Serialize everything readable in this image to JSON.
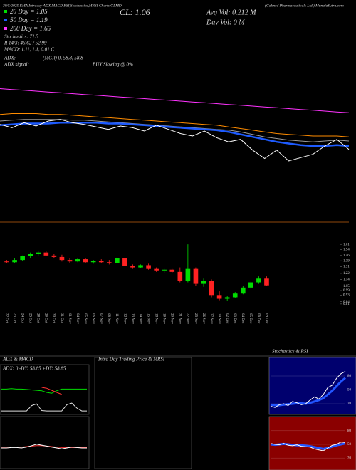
{
  "header": {
    "title": "30/5/2025 EMA Intraday ADX,MACD,RSI,Stochastics,MRSI Charts GLMD",
    "company": "(Galmed Pharmaceuticals Ltd.) MunafaSutra.com",
    "ema20": "20 Day = 1.05",
    "ema50": "50 Day = 1.19",
    "ema200": "200 Day = 1.65",
    "stoch": "Stochastics: 71.5",
    "rsi": "R 14/3: 46.62 / 52.99",
    "macd": "MACD: 1.11, 1.1, 0.01 C",
    "adx": "ADX:",
    "adx_value": "(MGR) 0, 58.8, 58.8",
    "adx_signal": "ADX signal:",
    "signal": "BUY Slowing @ 0%",
    "close": "CL: 1.06",
    "avg_vol": "Avg Vol: 0.212 M",
    "day_vol": "Day Vol: 0 M"
  },
  "chart_data": [
    {
      "type": "line",
      "ylim": [
        0.8,
        2.0
      ],
      "series": [
        {
          "color": "#ff33ff",
          "values": [
            1.79,
            1.78,
            1.77,
            1.76,
            1.75,
            1.74,
            1.73,
            1.72,
            1.71,
            1.7,
            1.69,
            1.68,
            1.67,
            1.66,
            1.65,
            1.64,
            1.63,
            1.62,
            1.61,
            1.6,
            1.59,
            1.58,
            1.57,
            1.56,
            1.55,
            1.54,
            1.53,
            1.52,
            1.51,
            1.5
          ]
        },
        {
          "color": "#ff8c00",
          "values": [
            1.48,
            1.49,
            1.49,
            1.49,
            1.48,
            1.48,
            1.47,
            1.46,
            1.45,
            1.44,
            1.43,
            1.42,
            1.41,
            1.4,
            1.39,
            1.38,
            1.37,
            1.36,
            1.35,
            1.33,
            1.31,
            1.29,
            1.27,
            1.25,
            1.24,
            1.23,
            1.22,
            1.22,
            1.22,
            1.21
          ]
        },
        {
          "color": "#999999",
          "values": [
            1.4,
            1.41,
            1.42,
            1.42,
            1.42,
            1.42,
            1.41,
            1.41,
            1.4,
            1.39,
            1.38,
            1.37,
            1.36,
            1.35,
            1.34,
            1.33,
            1.32,
            1.31,
            1.3,
            1.29,
            1.27,
            1.24,
            1.21,
            1.19,
            1.17,
            1.16,
            1.15,
            1.16,
            1.17,
            1.16
          ]
        },
        {
          "color": "#1e5bff",
          "values": [
            1.35,
            1.36,
            1.37,
            1.37,
            1.37,
            1.38,
            1.38,
            1.38,
            1.38,
            1.37,
            1.37,
            1.36,
            1.35,
            1.34,
            1.33,
            1.32,
            1.31,
            1.3,
            1.29,
            1.27,
            1.24,
            1.21,
            1.18,
            1.15,
            1.13,
            1.11,
            1.1,
            1.1,
            1.11,
            1.1
          ]
        },
        {
          "color": "#ffffff",
          "values": [
            1.36,
            1.32,
            1.38,
            1.34,
            1.4,
            1.42,
            1.38,
            1.36,
            1.33,
            1.3,
            1.34,
            1.32,
            1.28,
            1.35,
            1.3,
            1.25,
            1.22,
            1.28,
            1.2,
            1.15,
            1.18,
            1.05,
            0.95,
            1.05,
            0.92,
            0.96,
            1.0,
            1.1,
            1.18,
            1.06
          ]
        }
      ]
    },
    {
      "type": "candlestick",
      "categories": [
        "22 Oct",
        "23 Oct",
        "24 Oct",
        "25 Oct",
        "28 Oct",
        "29 Oct",
        "30 Oct",
        "31 Oct",
        "01 Nov",
        "04 Nov",
        "05 Nov",
        "06 Nov",
        "07 Nov",
        "08 Nov",
        "11 Nov",
        "12 Nov",
        "13 Nov",
        "14 Nov",
        "15 Nov",
        "18 Nov",
        "19 Nov",
        "20 Nov",
        "21 Nov",
        "22 Nov",
        "25 Nov",
        "26 Nov",
        "27 Nov",
        "29 Nov",
        "02 Dec",
        "03 Dec",
        "04 Dec",
        "05 Dec",
        "06 Dec",
        "09 Dec"
      ],
      "open": [
        1.38,
        1.37,
        1.4,
        1.45,
        1.48,
        1.5,
        1.46,
        1.44,
        1.4,
        1.38,
        1.41,
        1.37,
        1.39,
        1.37,
        1.36,
        1.42,
        1.32,
        1.3,
        1.33,
        1.28,
        1.26,
        1.27,
        1.24,
        1.12,
        1.28,
        1.08,
        1.12,
        0.93,
        0.88,
        0.9,
        0.95,
        1.03,
        1.1,
        1.15
      ],
      "high": [
        1.4,
        1.42,
        1.46,
        1.5,
        1.52,
        1.52,
        1.48,
        1.47,
        1.42,
        1.43,
        1.42,
        1.4,
        1.41,
        1.4,
        1.44,
        1.45,
        1.34,
        1.34,
        1.35,
        1.3,
        1.28,
        1.28,
        1.3,
        1.61,
        1.3,
        1.15,
        1.14,
        0.98,
        0.92,
        0.97,
        1.05,
        1.12,
        1.18,
        1.18
      ],
      "low": [
        1.36,
        1.36,
        1.39,
        1.42,
        1.46,
        1.45,
        1.42,
        1.38,
        1.36,
        1.37,
        1.36,
        1.35,
        1.36,
        1.34,
        1.35,
        1.3,
        1.28,
        1.29,
        1.27,
        1.24,
        1.23,
        1.22,
        1.1,
        1.1,
        1.05,
        1.04,
        0.9,
        0.86,
        0.85,
        0.89,
        0.94,
        1.01,
        1.08,
        1.05
      ],
      "close": [
        1.37,
        1.4,
        1.45,
        1.48,
        1.5,
        1.46,
        1.44,
        1.4,
        1.38,
        1.41,
        1.37,
        1.39,
        1.37,
        1.36,
        1.42,
        1.32,
        1.3,
        1.33,
        1.28,
        1.26,
        1.27,
        1.24,
        1.12,
        1.28,
        1.08,
        1.12,
        0.93,
        0.88,
        0.9,
        0.95,
        1.03,
        1.1,
        1.15,
        1.06
      ],
      "ylim": [
        0.78,
        1.64
      ],
      "yticks": [
        1.61,
        1.54,
        1.46,
        1.39,
        1.31,
        1.22,
        1.14,
        1.05,
        0.99,
        0.93,
        0.84,
        0.81
      ]
    },
    {
      "type": "line",
      "title": "ADX & MACD",
      "subtitle": "ADX: 0  -DY: 58.85  +DY: 58.85",
      "ylim": [
        0,
        100
      ],
      "series": [
        {
          "color": "#00dd00",
          "values": [
            58,
            58,
            59,
            58,
            58,
            57,
            56,
            55,
            54,
            50,
            48,
            54,
            58,
            58,
            58,
            58,
            58,
            58
          ]
        },
        {
          "color": "#ff3333",
          "values": [
            null,
            null,
            null,
            null,
            null,
            null,
            null,
            null,
            62,
            60,
            55,
            50,
            45,
            null,
            null,
            null,
            null,
            null
          ]
        },
        {
          "color": "#dddddd",
          "values": [
            5,
            5,
            5,
            5,
            5,
            5,
            18,
            22,
            6,
            5,
            5,
            5,
            5,
            20,
            24,
            12,
            5,
            5
          ]
        }
      ]
    },
    {
      "type": "line",
      "ylim": [
        0,
        100
      ],
      "series": [
        {
          "color": "#ff3333",
          "values": [
            42,
            42,
            42,
            42,
            42,
            43,
            44,
            45,
            45,
            44,
            43,
            42,
            41,
            41,
            41,
            41,
            41,
            41
          ]
        },
        {
          "color": "#ffffff",
          "values": [
            40,
            40,
            41,
            41,
            40,
            42,
            45,
            48,
            46,
            44,
            42,
            40,
            38,
            40,
            42,
            41,
            40,
            40
          ]
        }
      ]
    },
    {
      "type": "line",
      "title": "Intra Day Trading Price & MRSI",
      "ylim": [
        0,
        100
      ],
      "series": []
    },
    {
      "type": "line",
      "title": "Stochastics & RSI",
      "ylim": [
        0,
        100
      ],
      "yticks": [
        80,
        50,
        20
      ],
      "series": [
        {
          "color": "#2255ff",
          "values": [
            18,
            17,
            17,
            18,
            19,
            20,
            21,
            21,
            20,
            22,
            25,
            28,
            32,
            40,
            48,
            58,
            68,
            76
          ]
        },
        {
          "color": "#ffffff",
          "values": [
            15,
            12,
            18,
            20,
            16,
            25,
            22,
            18,
            20,
            28,
            35,
            30,
            40,
            55,
            60,
            75,
            85,
            90
          ]
        }
      ]
    },
    {
      "type": "line",
      "ylim": [
        0,
        100
      ],
      "yticks": [
        80,
        50,
        20
      ],
      "series": [
        {
          "color": "#2255ff",
          "values": [
            50,
            49,
            50,
            51,
            50,
            49,
            48,
            48,
            47,
            46,
            44,
            42,
            40,
            42,
            45,
            48,
            50,
            52
          ]
        },
        {
          "color": "#ffffff",
          "values": [
            52,
            50,
            49,
            52,
            48,
            47,
            49,
            46,
            45,
            44,
            40,
            38,
            36,
            42,
            48,
            50,
            55,
            54
          ]
        }
      ]
    }
  ]
}
